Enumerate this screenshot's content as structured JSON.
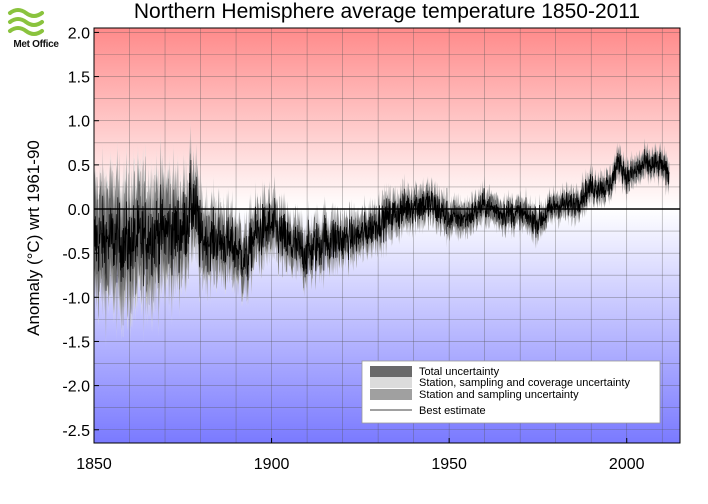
{
  "brand": {
    "logo_text": "Met Office",
    "logo_color": "#8ac33e"
  },
  "chart_data": {
    "type": "line",
    "title": "Northern Hemisphere average temperature 1850-2011",
    "xlabel": "",
    "ylabel": "Anomaly (°C) wrt 1961-90",
    "xlim": [
      1850,
      2015
    ],
    "ylim": [
      -2.65,
      2.05
    ],
    "x_ticks": [
      1850,
      1900,
      1950,
      2000
    ],
    "y_ticks": [
      "2.0",
      "1.5",
      "1.0",
      "0.5",
      "0.0",
      "-0.5",
      "-1.0",
      "-1.5",
      "-2.0",
      "-2.5"
    ],
    "y_tick_values": [
      2.0,
      1.5,
      1.0,
      0.5,
      0.0,
      -0.5,
      -1.0,
      -1.5,
      -2.0,
      -2.5
    ],
    "grid": true,
    "background_gradient": {
      "top": "#ff8a8a",
      "zero": "#ffffff",
      "bottom": "#7a7aff"
    },
    "legend_position": "bottom-right",
    "legend": [
      {
        "label": "Total uncertainty",
        "color": "#6a6a6a",
        "kind": "band"
      },
      {
        "label": "Station, sampling and coverage uncertainty",
        "color": "#dcdcdc",
        "kind": "band"
      },
      {
        "label": "Station and sampling uncertainty",
        "color": "#a0a0a0",
        "kind": "band"
      },
      {
        "label": "Best estimate",
        "color": "#000000",
        "kind": "line"
      }
    ],
    "series": [
      {
        "name": "Best estimate",
        "x": [
          1850,
          1855,
          1860,
          1865,
          1870,
          1875,
          1878,
          1880,
          1885,
          1890,
          1893,
          1895,
          1900,
          1905,
          1910,
          1915,
          1920,
          1925,
          1930,
          1935,
          1940,
          1945,
          1950,
          1955,
          1960,
          1965,
          1970,
          1975,
          1980,
          1985,
          1990,
          1995,
          1998,
          2000,
          2005,
          2010,
          2011
        ],
        "values": [
          -0.35,
          -0.35,
          -0.4,
          -0.3,
          -0.25,
          -0.25,
          0.1,
          -0.35,
          -0.35,
          -0.45,
          -0.6,
          -0.3,
          -0.2,
          -0.4,
          -0.5,
          -0.35,
          -0.35,
          -0.3,
          -0.15,
          -0.05,
          0.05,
          0.05,
          -0.1,
          -0.1,
          0.05,
          -0.05,
          -0.05,
          -0.15,
          0.05,
          0.05,
          0.25,
          0.25,
          0.55,
          0.35,
          0.5,
          0.5,
          0.4
        ]
      },
      {
        "name": "Total uncertainty",
        "x": [
          1850,
          1860,
          1870,
          1880,
          1890,
          1900,
          1920,
          1950,
          1980,
          2000,
          2011
        ],
        "half_width": [
          0.55,
          0.55,
          0.5,
          0.35,
          0.3,
          0.25,
          0.2,
          0.15,
          0.12,
          0.12,
          0.12
        ]
      },
      {
        "name": "Station, sampling and coverage uncertainty",
        "x": [
          1850,
          1860,
          1870,
          1880,
          1890,
          1900,
          1920,
          1950,
          1980,
          2000,
          2011
        ],
        "half_width": [
          0.6,
          0.7,
          0.6,
          0.4,
          0.35,
          0.28,
          0.22,
          0.16,
          0.13,
          0.13,
          0.13
        ]
      },
      {
        "name": "Station and sampling uncertainty",
        "x": [
          1850,
          1860,
          1870,
          1880,
          1890,
          1900,
          1920,
          1950,
          1980,
          2000,
          2011
        ],
        "half_width": [
          0.3,
          0.35,
          0.3,
          0.2,
          0.18,
          0.15,
          0.12,
          0.1,
          0.08,
          0.08,
          0.08
        ]
      }
    ]
  }
}
